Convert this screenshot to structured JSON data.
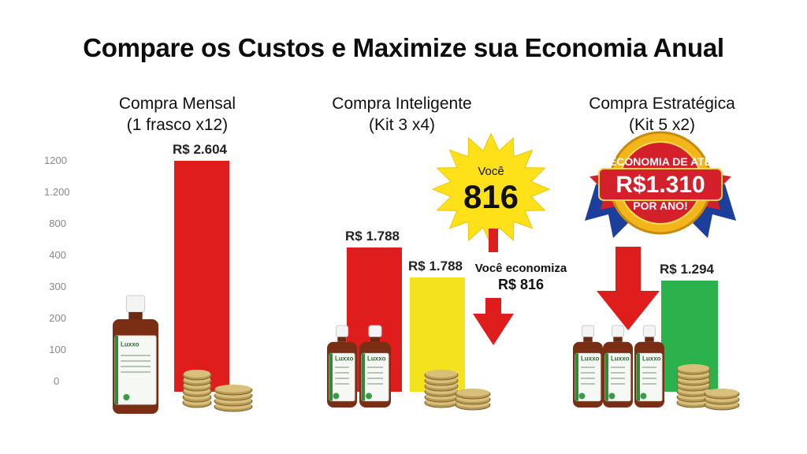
{
  "title": "Compare os Custos e Maximize sua Economia Anual",
  "colors": {
    "red": "#e01d1d",
    "yellow": "#f5e21f",
    "green": "#2bb24c",
    "star": "#ffe11a",
    "ribbon_red": "#d3202a",
    "ribbon_blue": "#1b3f9a",
    "gold": "#f2b51a"
  },
  "groups": [
    {
      "title_line1": "Compra Mensal",
      "title_line2": "(1 frasco x12)"
    },
    {
      "title_line1": "Compra Inteligente",
      "title_line2": "(Kit 3 x4)"
    },
    {
      "title_line1": "Compra Estratégica",
      "title_line2": "(Kit 5 x2)"
    }
  ],
  "axis": {
    "ticks": [
      "1200",
      "1.200",
      "800",
      "400",
      "300",
      "200",
      "100",
      "0"
    ]
  },
  "chart_data": {
    "type": "bar",
    "title": "Compare os Custos e Maximize sua Economia Anual",
    "categories": [
      "Compra Mensal (1 frasco x12)",
      "Compra Inteligente (Kit 3 x4)",
      "Compra Estratégica (Kit 5 x2)"
    ],
    "bars": [
      {
        "group": 0,
        "value": 2604,
        "label": "R$ 2.604",
        "color": "#e01d1d"
      },
      {
        "group": 1,
        "value": 1788,
        "label": "R$ 1.788",
        "color": "#e01d1d"
      },
      {
        "group": 1,
        "value": 1788,
        "label": "R$ 1.788",
        "color": "#f5e21f"
      },
      {
        "group": 2,
        "value": 1294,
        "label": "R$ 1.294",
        "color": "#2bb24c"
      }
    ],
    "ylim": [
      0,
      2604
    ]
  },
  "callouts": {
    "star_top": "Você",
    "star_value": "816",
    "savings_line1": "Você economiza",
    "savings_line2": "R$ 816",
    "badge_line1": "ECONOMIA DE ATÉ",
    "badge_line2": "R$1.310",
    "badge_line3": "POR ANO!"
  },
  "bottles": {
    "brand": "Luxxo"
  }
}
